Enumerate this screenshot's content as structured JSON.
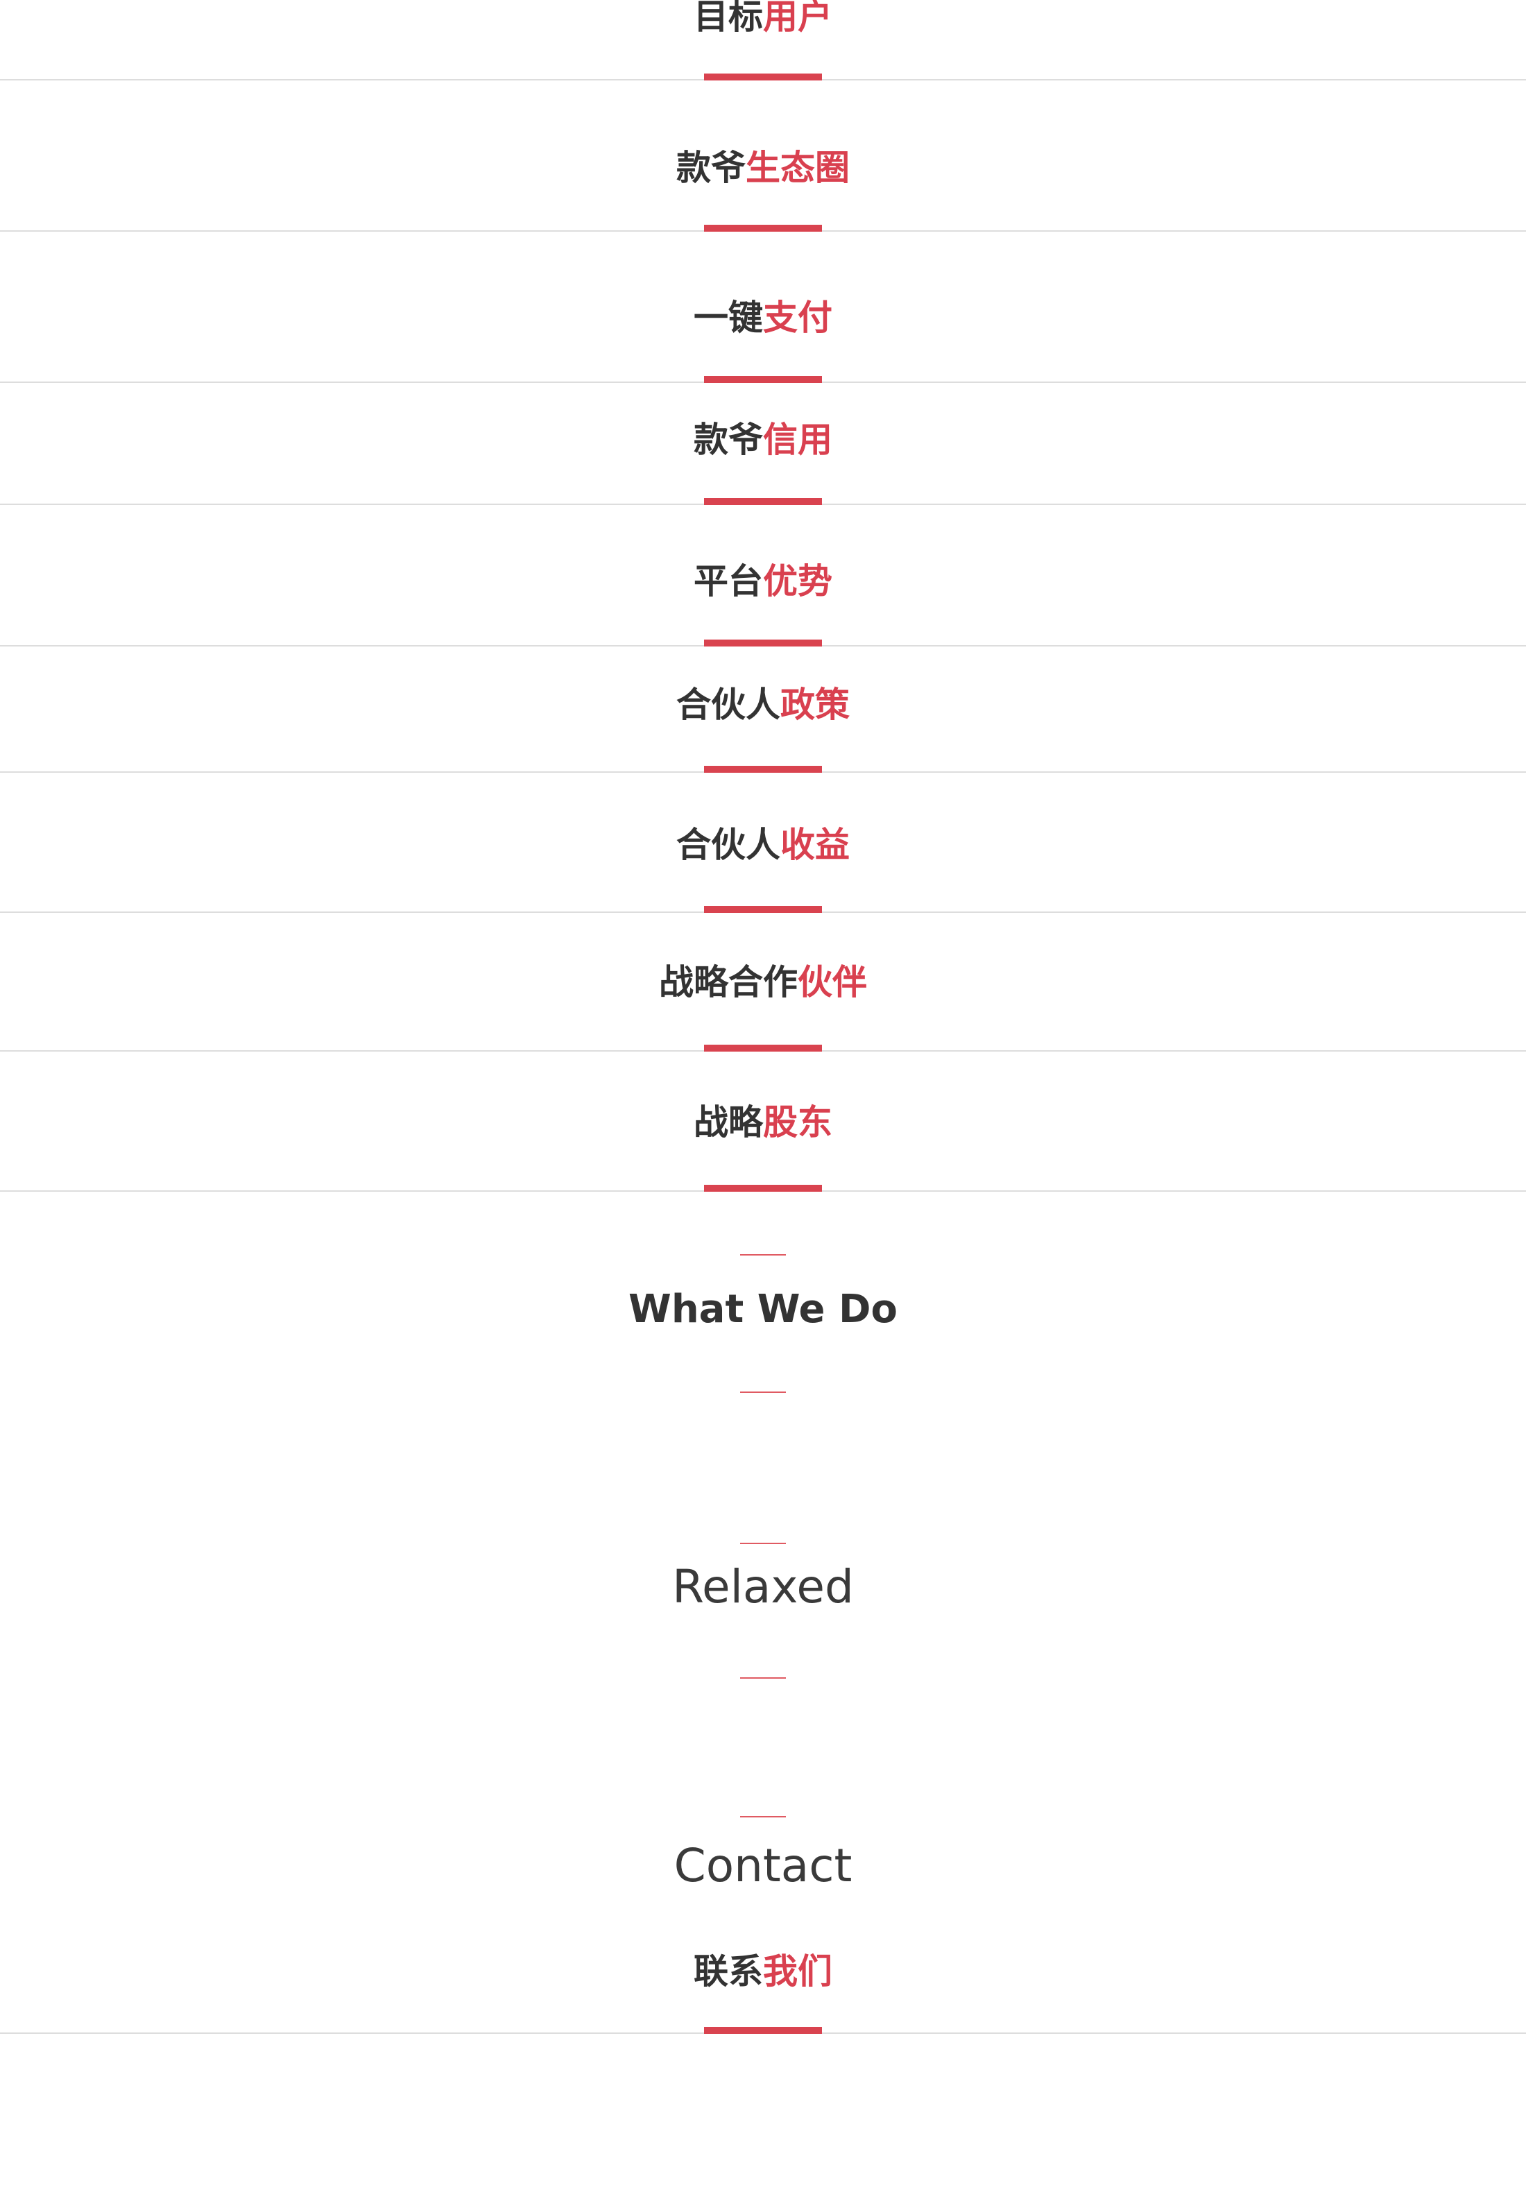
{
  "sections": [
    {
      "dark": "目标",
      "accent": "用户"
    },
    {
      "dark": "款爷",
      "accent": "生态圈"
    },
    {
      "dark": "一键",
      "accent": "支付"
    },
    {
      "dark": "款爷",
      "accent": "信用"
    },
    {
      "dark": "平台",
      "accent": "优势"
    },
    {
      "dark": "合伙人",
      "accent": "政策"
    },
    {
      "dark": "合伙人",
      "accent": "收益"
    },
    {
      "dark": "战略合作",
      "accent": "伙伴"
    },
    {
      "dark": "战略",
      "accent": "股东"
    }
  ],
  "what_we_do": {
    "title": "What We Do"
  },
  "relaxed": {
    "title": "Relaxed"
  },
  "contact": {
    "title": "Contact",
    "subtitle_dark": "联系",
    "subtitle_accent": "我们"
  },
  "colors": {
    "accent": "#d9404f",
    "text": "#333333",
    "divider": "#dddddd"
  }
}
